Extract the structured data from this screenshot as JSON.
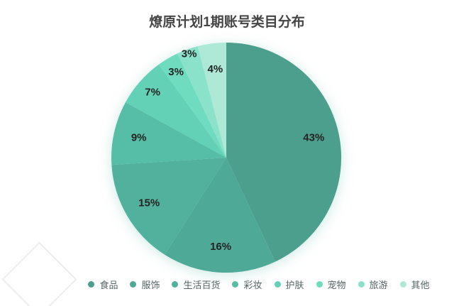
{
  "page": {
    "background_color": "#ffffff"
  },
  "chart_data": {
    "type": "pie",
    "title": "燎原计划1期账号类目分布",
    "categories": [
      "食品",
      "服饰",
      "生活百货",
      "彩妆",
      "护肤",
      "宠物",
      "旅游",
      "其他"
    ],
    "values": [
      43,
      16,
      15,
      9,
      7,
      3,
      3,
      4
    ],
    "unit": "%",
    "data_labels": [
      "43%",
      "16%",
      "15%",
      "9%",
      "7%",
      "3%",
      "3%",
      "4%"
    ],
    "colors": [
      "#4C9E8D",
      "#4FA997",
      "#52B19D",
      "#56BEA6",
      "#62D1B5",
      "#6FDBBF",
      "#8AE2CB",
      "#ADE9D6"
    ],
    "legend_entries": [
      "食品",
      "服饰",
      "生活百货",
      "彩妆",
      "护肤",
      "宠物",
      "旅游",
      "其他"
    ],
    "legend_position": "bottom",
    "start_angle_deg": 0,
    "direction": "clockwise",
    "label_radius_factors": [
      0.78,
      0.78,
      0.78,
      0.78,
      0.855,
      0.86,
      0.955,
      0.77
    ],
    "title_color": "#454545",
    "label_color": "#232323",
    "legend_text_color": "#546565"
  }
}
